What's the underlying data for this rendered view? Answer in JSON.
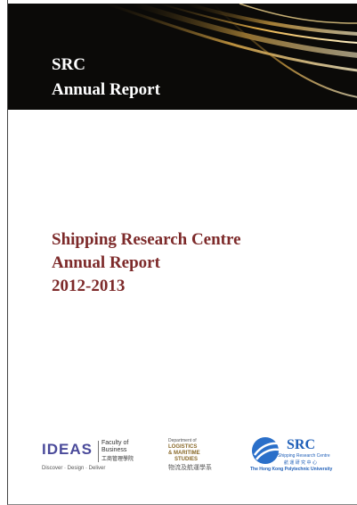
{
  "header": {
    "line1": "SRC",
    "line2": "Annual Report"
  },
  "title": {
    "lines": [
      "Shipping Research Centre",
      "Annual Report",
      "2012-2013"
    ]
  },
  "logos": {
    "ideas": {
      "name": "IDEAS",
      "faculty": "Faculty of",
      "faculty2": "Business",
      "chinese": "工商管理學院",
      "tagline": "Discover  ·  Design  ·  Deliver"
    },
    "lms": {
      "dept": "Department of",
      "lines": [
        "LOGISTICS",
        "& MARITIME",
        "STUDIES"
      ],
      "chinese": "物流及航運學系"
    },
    "src": {
      "name": "SRC",
      "full": "Shipping Research Centre",
      "chinese": "航 運 研 究 中 心",
      "university": "The Hong Kong Polytechnic University"
    }
  }
}
